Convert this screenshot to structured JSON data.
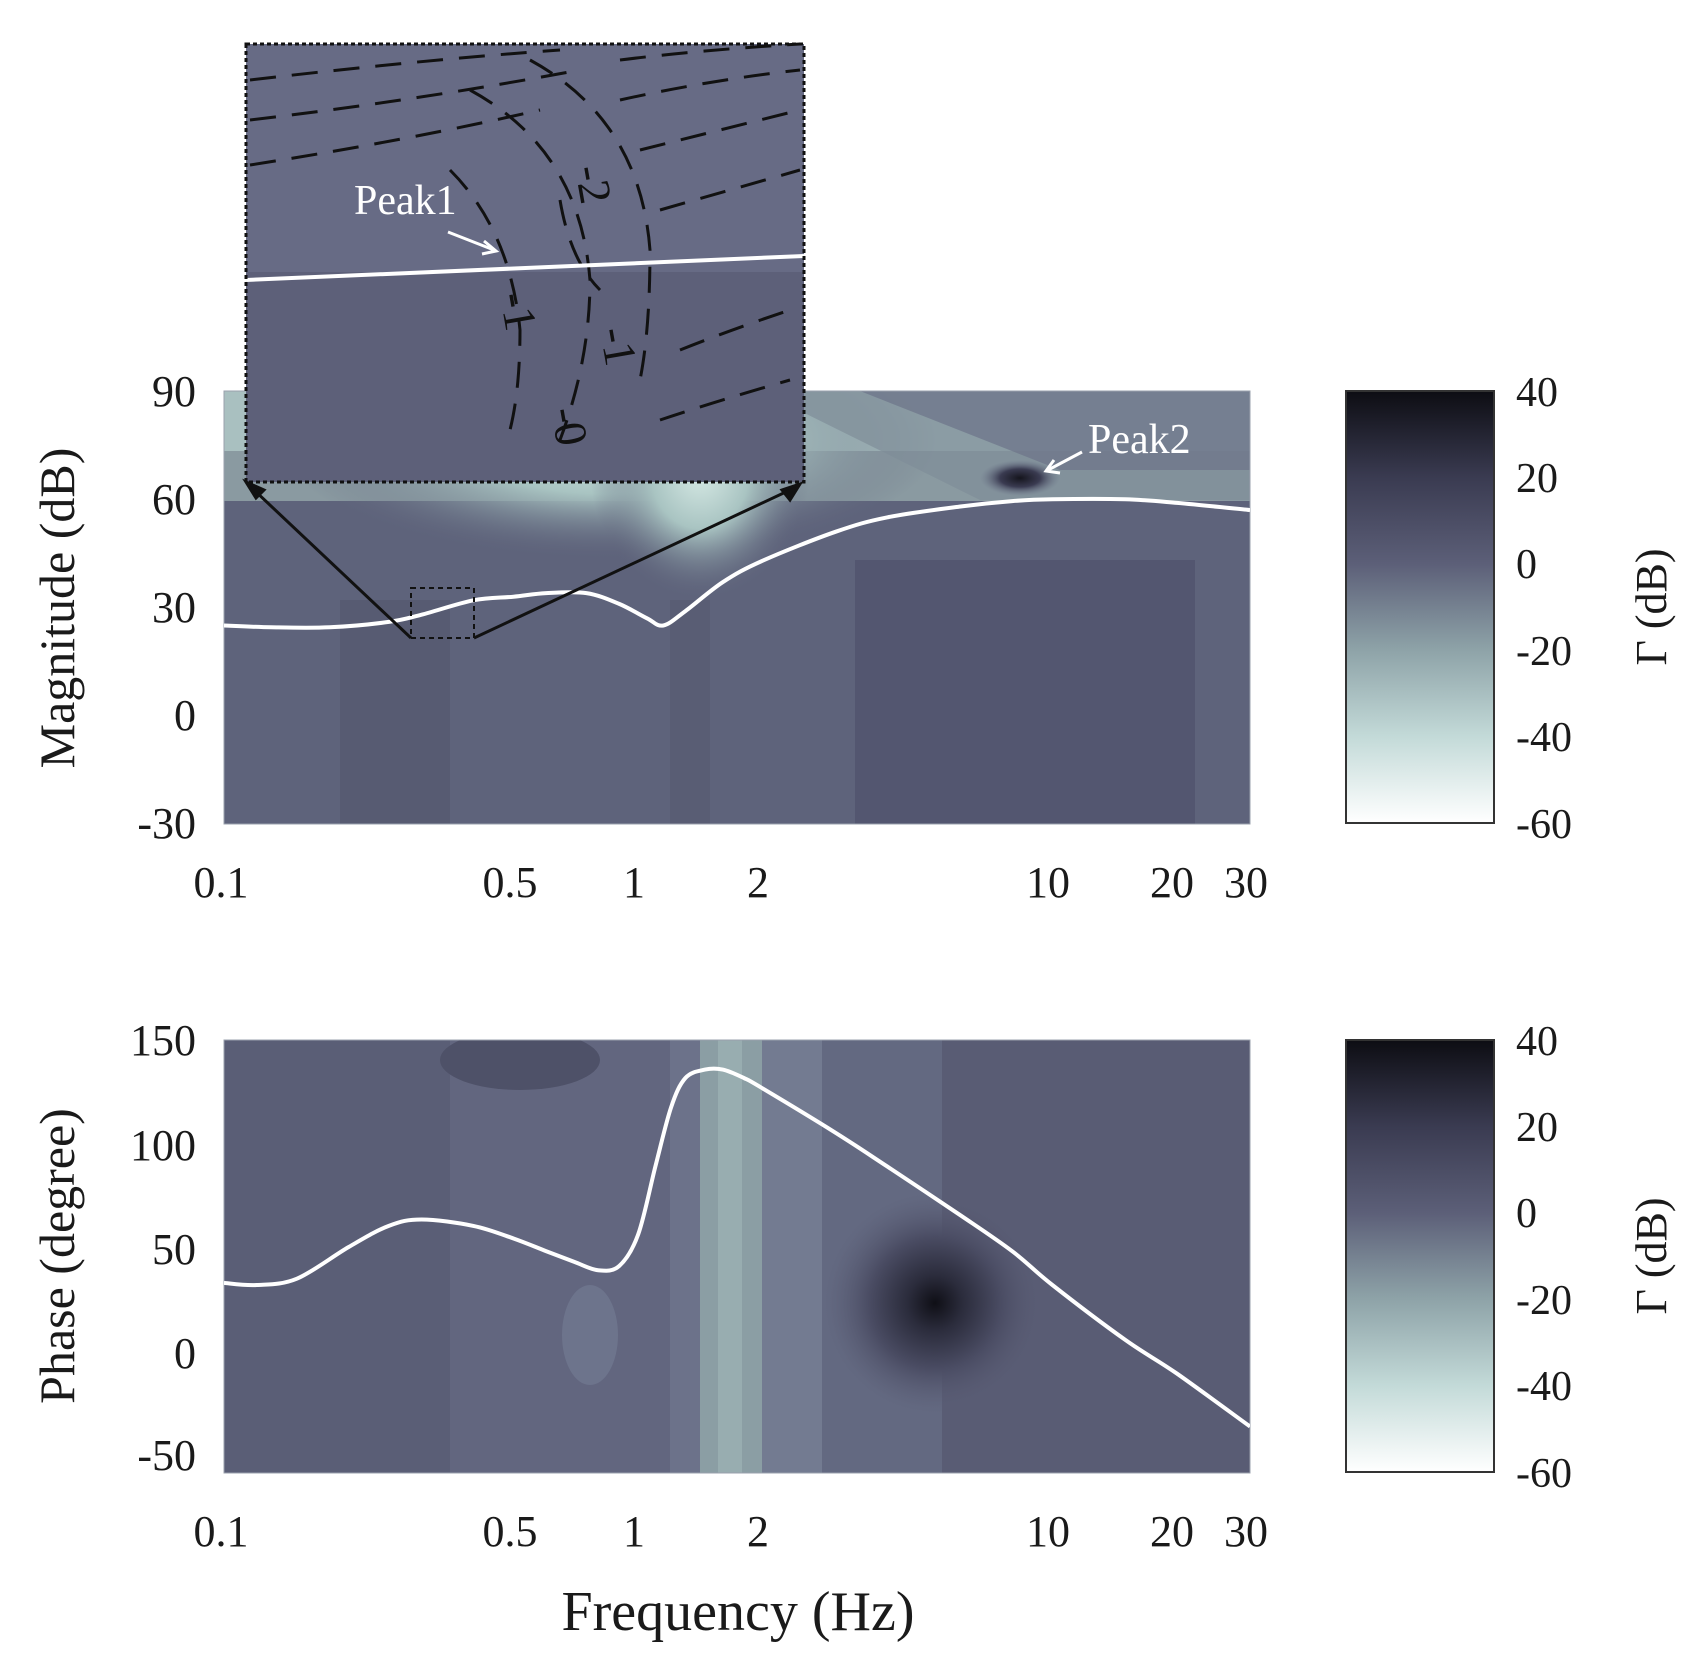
{
  "chart_data": [
    {
      "type": "heatmap",
      "panel": "magnitude",
      "xlabel": "",
      "ylabel": "Magnitude (dB)",
      "xscale": "log",
      "xlim": [
        0.1,
        30
      ],
      "ylim": [
        -30,
        90
      ],
      "xticks": [
        0.1,
        0.5,
        1,
        2,
        10,
        20,
        30
      ],
      "xtick_labels": [
        "0.1",
        "0.5",
        "1",
        "2",
        "10",
        "20",
        "30"
      ],
      "yticks": [
        90,
        60,
        30,
        0,
        -30
      ],
      "ytick_labels": [
        "90",
        "60",
        "30",
        "0",
        "-30"
      ],
      "series": [
        {
          "x": [
            0.1,
            0.13,
            0.18,
            0.25,
            0.3,
            0.4,
            0.5,
            0.6,
            0.75,
            0.9,
            1.05,
            1.15,
            1.3,
            1.6,
            2,
            3,
            4,
            6,
            8,
            10,
            15,
            20,
            30
          ],
          "y": [
            25,
            24.5,
            24.5,
            26,
            28,
            32,
            33,
            34,
            34,
            31,
            27,
            25,
            29,
            37,
            43,
            51,
            55,
            58,
            59.5,
            60,
            60,
            59,
            57
          ]
        }
      ],
      "annotations": [
        {
          "text": "Peak2",
          "x": 9.2,
          "y": 66
        },
        {
          "text": "Peak1",
          "location": "inset"
        }
      ],
      "inset": {
        "xlim": [
          0.3,
          0.4
        ],
        "ylim": [
          21,
          36
        ],
        "contour_labels": [
          "-2",
          "-1",
          "-1",
          "-0"
        ],
        "line": {
          "x": [
            0.3,
            0.4
          ],
          "y": [
            26,
            32
          ]
        }
      },
      "colorbar": {
        "label": "Γ (dB)",
        "range": [
          -60,
          40
        ],
        "ticks": [
          "40",
          "20",
          "0",
          "-20",
          "-40",
          "-60"
        ],
        "colors": [
          "#0d0d13",
          "#3a3b51",
          "#5c5f78",
          "#8ea3a8",
          "#c3dad8",
          "#ffffff"
        ]
      }
    },
    {
      "type": "heatmap",
      "panel": "phase",
      "xlabel": "Frequency (Hz)",
      "ylabel": "Phase (degree)",
      "xscale": "log",
      "xlim": [
        0.1,
        30
      ],
      "ylim": [
        -55,
        150
      ],
      "xticks": [
        0.1,
        0.5,
        1,
        2,
        10,
        20,
        30
      ],
      "xtick_labels": [
        "0.1",
        "0.5",
        "1",
        "2",
        "10",
        "20",
        "30"
      ],
      "yticks": [
        150,
        100,
        50,
        0,
        -50
      ],
      "ytick_labels": [
        "150",
        "100",
        "50",
        "0",
        "-50"
      ],
      "series": [
        {
          "x": [
            0.1,
            0.12,
            0.15,
            0.2,
            0.25,
            0.3,
            0.4,
            0.5,
            0.6,
            0.7,
            0.8,
            0.9,
            1.0,
            1.1,
            1.2,
            1.3,
            1.45,
            1.6,
            1.8,
            2,
            3,
            4,
            6,
            8,
            10,
            15,
            20,
            30
          ],
          "y": [
            35,
            34,
            37,
            52,
            62,
            65,
            62,
            56,
            50,
            45,
            41,
            43,
            58,
            90,
            118,
            132,
            136,
            136,
            132,
            127,
            106,
            90,
            67,
            50,
            34,
            8,
            -8,
            -33
          ]
        }
      ],
      "colorbar": {
        "label": "Γ (dB)",
        "range": [
          -60,
          40
        ],
        "ticks": [
          "40",
          "20",
          "0",
          "-20",
          "-40",
          "-60"
        ],
        "colors": [
          "#0d0d13",
          "#3a3b51",
          "#5c5f78",
          "#8ea3a8",
          "#c3dad8",
          "#ffffff"
        ]
      }
    }
  ]
}
